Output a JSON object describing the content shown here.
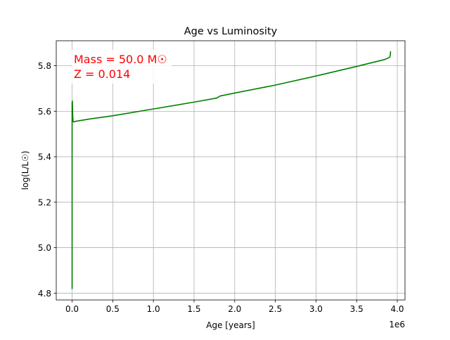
{
  "chart_data": {
    "type": "line",
    "title": "Age vs Luminosity",
    "xlabel": "Age [years]",
    "ylabel": "log(L/L☉)",
    "x_offset_label": "1e6",
    "xlim": [
      -0.195,
      4.095
    ],
    "ylim": [
      4.77,
      5.91
    ],
    "x_ticks": [
      0.0,
      0.5,
      1.0,
      1.5,
      2.0,
      2.5,
      3.0,
      3.5,
      4.0
    ],
    "x_tick_labels": [
      "0.0",
      "0.5",
      "1.0",
      "1.5",
      "2.0",
      "2.5",
      "3.0",
      "3.5",
      "4.0"
    ],
    "y_ticks": [
      4.8,
      5.0,
      5.2,
      5.4,
      5.6,
      5.8
    ],
    "y_tick_labels": [
      "4.8",
      "5.0",
      "5.2",
      "5.4",
      "5.6",
      "5.8"
    ],
    "grid": true,
    "series": [
      {
        "color": "#008000",
        "x": [
          0.0,
          0.0,
          0.0,
          0.0,
          0.0,
          0.0,
          0.0,
          0.0,
          0.0,
          0.0,
          0.003,
          0.005,
          0.008,
          0.012,
          0.02,
          0.05,
          0.2,
          0.5,
          1.0,
          1.5,
          1.78,
          1.82,
          2.0,
          2.5,
          3.0,
          3.5,
          3.85,
          3.9,
          3.91,
          3.915,
          3.917
        ],
        "y": [
          4.82,
          4.85,
          5.01,
          4.88,
          4.83,
          5.45,
          5.55,
          5.64,
          5.6,
          5.58,
          5.645,
          5.62,
          5.575,
          5.555,
          5.553,
          5.556,
          5.565,
          5.58,
          5.61,
          5.64,
          5.658,
          5.667,
          5.68,
          5.715,
          5.755,
          5.797,
          5.828,
          5.836,
          5.84,
          5.85,
          5.862
        ]
      }
    ],
    "annotations": [
      {
        "text": "Mass = 50.0 M☉",
        "color": "#ff0000"
      },
      {
        "text": "Z = 0.014",
        "color": "#ff0000"
      }
    ]
  }
}
